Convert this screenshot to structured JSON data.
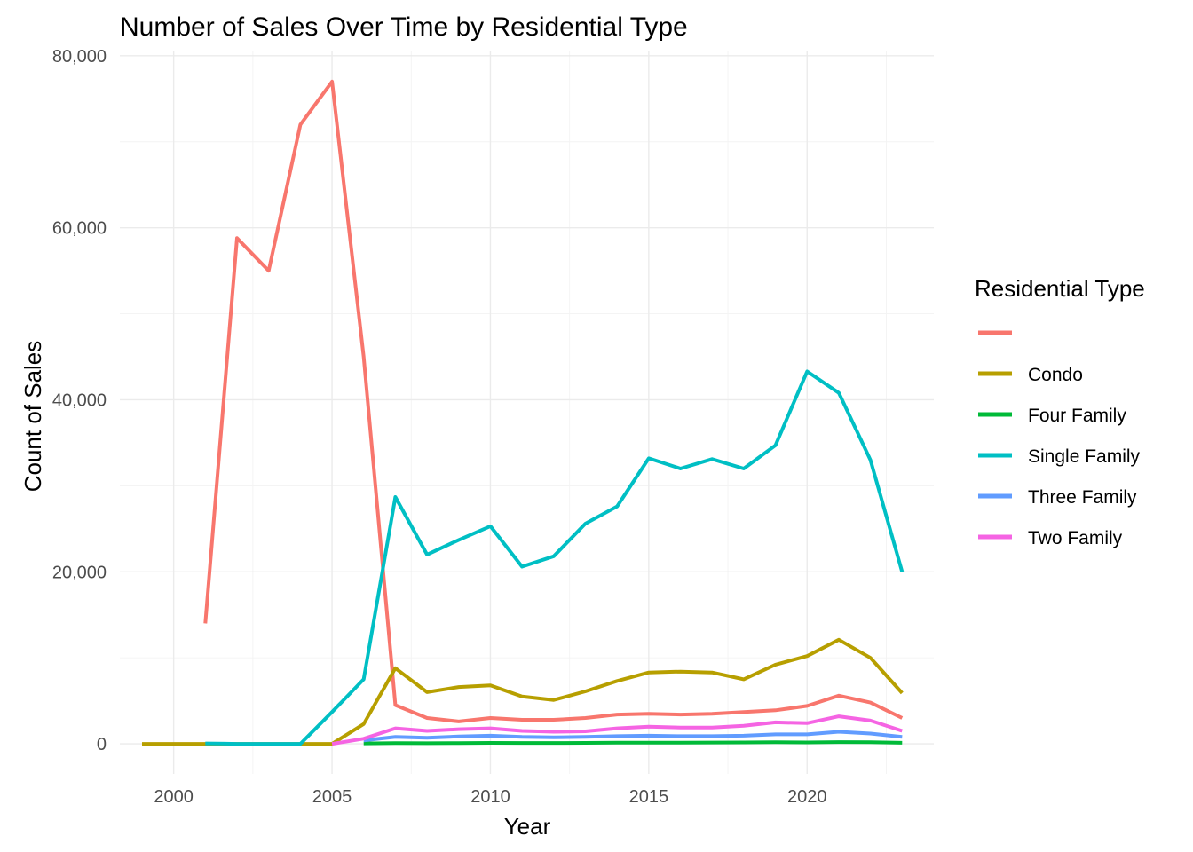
{
  "chart_data": {
    "type": "line",
    "title": "Number of Sales Over Time by Residential Type",
    "xlabel": "Year",
    "ylabel": "Count of Sales",
    "xlim": [
      1998.3,
      2024.0
    ],
    "ylim": [
      -3500,
      80500
    ],
    "x_ticks": [
      2000,
      2005,
      2010,
      2015,
      2020
    ],
    "x_tick_labels": [
      "2000",
      "2005",
      "2010",
      "2015",
      "2020"
    ],
    "y_ticks": [
      0,
      20000,
      40000,
      60000,
      80000
    ],
    "y_tick_labels": [
      "0",
      "20,000",
      "40,000",
      "60,000",
      "80,000"
    ],
    "grid": true,
    "legend": {
      "title": "Residential Type",
      "placement": "right"
    },
    "series": [
      {
        "name": "",
        "color": "#F8766D",
        "points": [
          [
            2001,
            14000
          ],
          [
            2002,
            58800
          ],
          [
            2003,
            55000
          ],
          [
            2004,
            72000
          ],
          [
            2005,
            77000
          ],
          [
            2006,
            45000
          ],
          [
            2007,
            4500
          ],
          [
            2008,
            3000
          ],
          [
            2009,
            2600
          ],
          [
            2010,
            3000
          ],
          [
            2011,
            2800
          ],
          [
            2012,
            2800
          ],
          [
            2013,
            3000
          ],
          [
            2014,
            3400
          ],
          [
            2015,
            3500
          ],
          [
            2016,
            3400
          ],
          [
            2017,
            3500
          ],
          [
            2018,
            3700
          ],
          [
            2019,
            3900
          ],
          [
            2020,
            4400
          ],
          [
            2021,
            5600
          ],
          [
            2022,
            4800
          ],
          [
            2023,
            3000
          ]
        ]
      },
      {
        "name": "Condo",
        "color": "#B79F00",
        "points": [
          [
            1999,
            0
          ],
          [
            2000,
            0
          ],
          [
            2001,
            0
          ],
          [
            2002,
            0
          ],
          [
            2003,
            0
          ],
          [
            2004,
            0
          ],
          [
            2005,
            0
          ],
          [
            2006,
            2300
          ],
          [
            2007,
            8800
          ],
          [
            2008,
            6000
          ],
          [
            2009,
            6600
          ],
          [
            2010,
            6800
          ],
          [
            2011,
            5500
          ],
          [
            2012,
            5100
          ],
          [
            2013,
            6100
          ],
          [
            2014,
            7300
          ],
          [
            2015,
            8300
          ],
          [
            2016,
            8400
          ],
          [
            2017,
            8300
          ],
          [
            2018,
            7500
          ],
          [
            2019,
            9200
          ],
          [
            2020,
            10200
          ],
          [
            2021,
            12100
          ],
          [
            2022,
            10000
          ],
          [
            2023,
            5900
          ]
        ]
      },
      {
        "name": "Four Family",
        "color": "#00BA38",
        "points": [
          [
            2006,
            50
          ],
          [
            2007,
            80
          ],
          [
            2008,
            70
          ],
          [
            2009,
            90
          ],
          [
            2010,
            110
          ],
          [
            2011,
            100
          ],
          [
            2012,
            100
          ],
          [
            2013,
            110
          ],
          [
            2014,
            130
          ],
          [
            2015,
            140
          ],
          [
            2016,
            140
          ],
          [
            2017,
            150
          ],
          [
            2018,
            160
          ],
          [
            2019,
            180
          ],
          [
            2020,
            160
          ],
          [
            2021,
            200
          ],
          [
            2022,
            180
          ],
          [
            2023,
            120
          ]
        ]
      },
      {
        "name": "Single Family",
        "color": "#00BFC4",
        "points": [
          [
            2001,
            50
          ],
          [
            2002,
            0
          ],
          [
            2003,
            0
          ],
          [
            2004,
            0
          ],
          [
            2005,
            3700
          ],
          [
            2006,
            7500
          ],
          [
            2007,
            28700
          ],
          [
            2008,
            22000
          ],
          [
            2009,
            23700
          ],
          [
            2010,
            25300
          ],
          [
            2011,
            20600
          ],
          [
            2012,
            21800
          ],
          [
            2013,
            25600
          ],
          [
            2014,
            27600
          ],
          [
            2015,
            33200
          ],
          [
            2016,
            32000
          ],
          [
            2017,
            33100
          ],
          [
            2018,
            32000
          ],
          [
            2019,
            34700
          ],
          [
            2020,
            43300
          ],
          [
            2021,
            40800
          ],
          [
            2022,
            33000
          ],
          [
            2023,
            20000
          ]
        ]
      },
      {
        "name": "Three Family",
        "color": "#619CFF",
        "points": [
          [
            2006,
            400
          ],
          [
            2007,
            800
          ],
          [
            2008,
            700
          ],
          [
            2009,
            850
          ],
          [
            2010,
            950
          ],
          [
            2011,
            800
          ],
          [
            2012,
            750
          ],
          [
            2013,
            800
          ],
          [
            2014,
            900
          ],
          [
            2015,
            950
          ],
          [
            2016,
            900
          ],
          [
            2017,
            900
          ],
          [
            2018,
            950
          ],
          [
            2019,
            1100
          ],
          [
            2020,
            1100
          ],
          [
            2021,
            1400
          ],
          [
            2022,
            1200
          ],
          [
            2023,
            800
          ]
        ]
      },
      {
        "name": "Two Family",
        "color": "#F564E3",
        "points": [
          [
            2005,
            0
          ],
          [
            2006,
            600
          ],
          [
            2007,
            1800
          ],
          [
            2008,
            1500
          ],
          [
            2009,
            1700
          ],
          [
            2010,
            1800
          ],
          [
            2011,
            1500
          ],
          [
            2012,
            1400
          ],
          [
            2013,
            1450
          ],
          [
            2014,
            1800
          ],
          [
            2015,
            2000
          ],
          [
            2016,
            1900
          ],
          [
            2017,
            1900
          ],
          [
            2018,
            2100
          ],
          [
            2019,
            2500
          ],
          [
            2020,
            2400
          ],
          [
            2021,
            3200
          ],
          [
            2022,
            2700
          ],
          [
            2023,
            1500
          ]
        ]
      }
    ]
  }
}
